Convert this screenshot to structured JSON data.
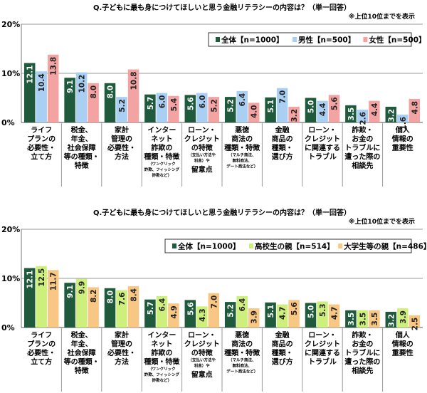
{
  "chart_data": [
    {
      "type": "bar",
      "title": "Q.子どもに最も身につけてほしいと思う金融リテラシーの内容は？（単一回答）",
      "note": "※上位10位までを表示",
      "ylim": [
        0,
        20
      ],
      "yticks": [
        "0%",
        "10%",
        "20%"
      ],
      "grid": true,
      "legend_placement": "top-right",
      "categories": [
        {
          "lines": [
            "ライフ",
            "プランの",
            "必要性・",
            "立て方"
          ],
          "notes": []
        },
        {
          "lines": [
            "税金、",
            "年金、",
            "社会保障",
            "等の種類・",
            "特徴"
          ],
          "notes": []
        },
        {
          "lines": [
            "家計",
            "管理の",
            "必要性・",
            "方法"
          ],
          "notes": []
        },
        {
          "lines": [
            "インター",
            "ネット",
            "詐欺の",
            "種類・特徴"
          ],
          "notes": [
            "（ワンクリック",
            "詐欺、フィッシング",
            "詐欺など）"
          ]
        },
        {
          "lines": [
            "ローン・",
            "クレジット",
            "の特徴"
          ],
          "notes": [
            "（支払い方法や",
            "利息）や"
          ],
          "after": [
            "留意点"
          ]
        },
        {
          "lines": [
            "悪徳",
            "商法の",
            "種類・特徴"
          ],
          "notes": [
            "（マルチ商法、",
            "無料商法、",
            "デート商法など）"
          ]
        },
        {
          "lines": [
            "金融",
            "商品の",
            "種類・",
            "選び方"
          ],
          "notes": []
        },
        {
          "lines": [
            "ローン・",
            "クレジット",
            "に関連する",
            "トラブル"
          ],
          "notes": []
        },
        {
          "lines": [
            "詐欺・",
            "お金の",
            "トラブルに",
            "遭った際の",
            "相談先"
          ],
          "notes": []
        },
        {
          "lines": [
            "個人",
            "情報の",
            "重要性"
          ],
          "notes": []
        }
      ],
      "series": [
        {
          "name": "全体【n=1000】",
          "color": "#1f5a3c",
          "values": [
            12.1,
            9.1,
            8.0,
            5.7,
            5.6,
            5.2,
            5.1,
            5.0,
            3.5,
            3.2
          ]
        },
        {
          "name": "男性【n=500】",
          "color": "#a9cff2",
          "values": [
            10.4,
            10.2,
            5.2,
            6.0,
            6.0,
            6.4,
            7.0,
            4.4,
            2.6,
            1.6
          ]
        },
        {
          "name": "女性【n=500】",
          "color": "#f4a3a3",
          "values": [
            13.8,
            8.0,
            10.8,
            5.4,
            5.2,
            4.0,
            3.2,
            5.6,
            4.4,
            4.8
          ]
        }
      ]
    },
    {
      "type": "bar",
      "title": "Q.子どもに最も身につけてほしいと思う金融リテラシーの内容は？（単一回答）",
      "note": "※上位10位までを表示",
      "ylim": [
        0,
        20
      ],
      "yticks": [
        "0%",
        "10%",
        "20%"
      ],
      "grid": true,
      "legend_placement": "top-right",
      "categories": [
        {
          "lines": [
            "ライフ",
            "プランの",
            "必要性・",
            "立て方"
          ],
          "notes": []
        },
        {
          "lines": [
            "税金、",
            "年金、",
            "社会保障",
            "等の種類・",
            "特徴"
          ],
          "notes": []
        },
        {
          "lines": [
            "家計",
            "管理の",
            "必要性・",
            "方法"
          ],
          "notes": []
        },
        {
          "lines": [
            "インター",
            "ネット",
            "詐欺の",
            "種類・特徴"
          ],
          "notes": [
            "（ワンクリック",
            "詐欺、フィッシング",
            "詐欺など）"
          ]
        },
        {
          "lines": [
            "ローン・",
            "クレジット",
            "の特徴"
          ],
          "notes": [
            "（支払い方法や",
            "利息）や"
          ],
          "after": [
            "留意点"
          ]
        },
        {
          "lines": [
            "悪徳",
            "商法の",
            "種類・特徴"
          ],
          "notes": [
            "（マルチ商法、",
            "無料商法、",
            "デート商法など）"
          ]
        },
        {
          "lines": [
            "金融",
            "商品の",
            "種類・",
            "選び方"
          ],
          "notes": []
        },
        {
          "lines": [
            "ローン・",
            "クレジット",
            "に関連する",
            "トラブル"
          ],
          "notes": []
        },
        {
          "lines": [
            "詐欺・",
            "お金の",
            "トラブルに",
            "遭った際の",
            "相談先"
          ],
          "notes": []
        },
        {
          "lines": [
            "個人",
            "情報の",
            "重要性"
          ],
          "notes": []
        }
      ],
      "series": [
        {
          "name": "全体【n=1000】",
          "color": "#1f5a3c",
          "values": [
            12.1,
            9.1,
            8.0,
            5.7,
            5.6,
            5.2,
            5.1,
            5.0,
            3.5,
            3.2
          ]
        },
        {
          "name": "高校生の親【n=514】",
          "color": "#cdf07c",
          "values": [
            12.5,
            9.9,
            7.6,
            6.4,
            4.3,
            6.4,
            4.7,
            5.3,
            3.5,
            3.9
          ]
        },
        {
          "name": "大学生等の親【n=486】",
          "color": "#f8c784",
          "values": [
            11.7,
            8.2,
            8.4,
            4.9,
            7.0,
            3.9,
            5.6,
            4.7,
            3.5,
            2.5
          ]
        }
      ]
    }
  ]
}
